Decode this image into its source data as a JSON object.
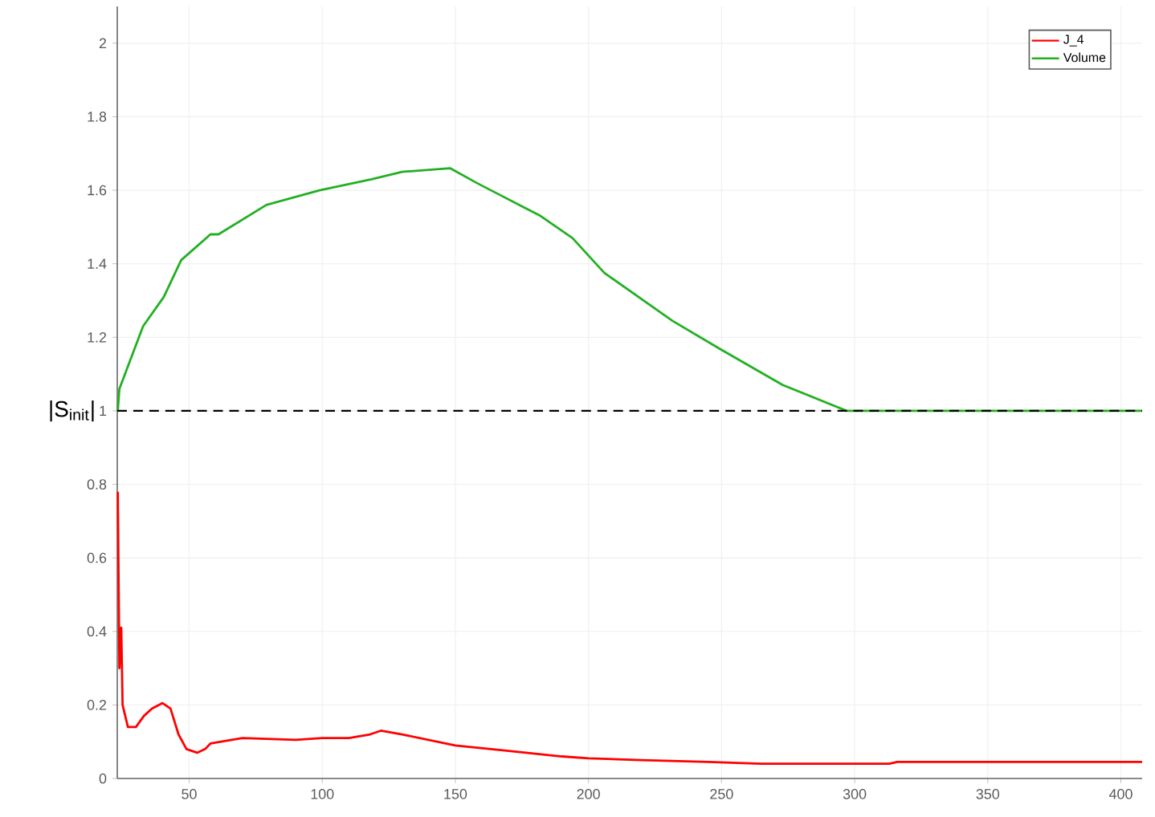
{
  "chart_data": {
    "type": "line",
    "ylabel": "|S$_{init}$|",
    "xlim": [
      23,
      408
    ],
    "ylim": [
      0,
      2.1
    ],
    "xticks": [
      50,
      100,
      150,
      200,
      250,
      300,
      350,
      400
    ],
    "yticks": [
      0,
      0.2,
      0.4,
      0.6,
      0.8,
      1,
      1.2,
      1.4,
      1.6,
      1.8,
      2
    ],
    "grid": true,
    "legend": "top right",
    "marker": "none",
    "line_style": "solid",
    "ref_lines": [
      {
        "axis": "y",
        "value": 1,
        "color": "#000000",
        "line_style": "dashed"
      }
    ],
    "series": [
      {
        "name": "J_4",
        "color": "#ff0000",
        "x": [
          23.2,
          23.8,
          24.5,
          25,
          27,
          30,
          33,
          36,
          40,
          43,
          46,
          49,
          53,
          56,
          58,
          70,
          90,
          100,
          110,
          118,
          122,
          130,
          150,
          170,
          190,
          200,
          220,
          245,
          265,
          313,
          316,
          408
        ],
        "values": [
          0.78,
          0.3,
          0.41,
          0.2,
          0.14,
          0.14,
          0.17,
          0.19,
          0.205,
          0.19,
          0.12,
          0.08,
          0.07,
          0.08,
          0.095,
          0.11,
          0.105,
          0.11,
          0.11,
          0.12,
          0.13,
          0.12,
          0.09,
          0.075,
          0.06,
          0.055,
          0.05,
          0.045,
          0.04,
          0.04,
          0.045,
          0.045
        ]
      },
      {
        "name": "Volume",
        "color": "#22b022",
        "x": [
          23.2,
          23.8,
          32.7,
          40.5,
          47,
          58,
          61,
          79,
          99,
          118.5,
          130,
          148,
          158,
          166,
          182,
          194,
          206,
          231.5,
          249,
          273,
          297,
          408
        ],
        "values": [
          1.0,
          1.06,
          1.23,
          1.31,
          1.41,
          1.48,
          1.48,
          1.56,
          1.6,
          1.63,
          1.65,
          1.66,
          1.62,
          1.59,
          1.53,
          1.47,
          1.375,
          1.245,
          1.17,
          1.07,
          1.0,
          1.0
        ]
      }
    ]
  }
}
